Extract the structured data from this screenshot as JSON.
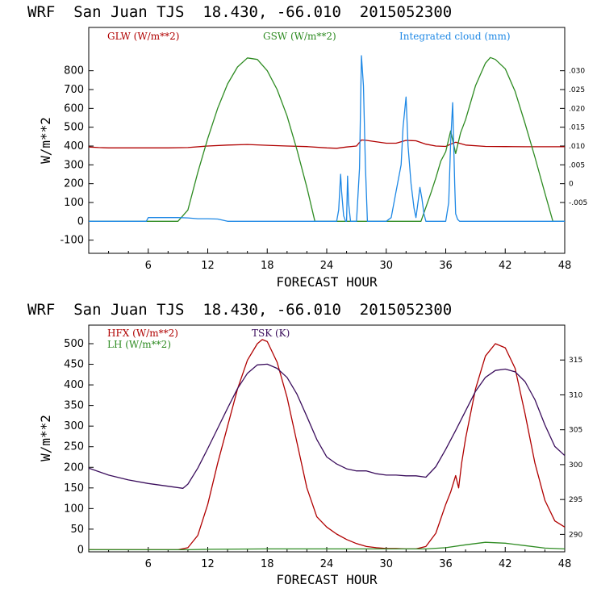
{
  "colors": {
    "glw": "#b00000",
    "gsw": "#2e8b22",
    "cloud": "#1e88e5",
    "hfx": "#b00000",
    "lh": "#2e8b22",
    "tsk": "#3a0d5c"
  },
  "chart_data": [
    {
      "type": "line",
      "title": "WRF  San Juan TJS  18.430, -66.010  2015052300",
      "xlabel": "FORECAST HOUR",
      "ylabel": "W/m**2",
      "xlim": [
        0,
        48
      ],
      "ylim": [
        -170,
        1030
      ],
      "x_ticks": [
        "6",
        "12",
        "18",
        "24",
        "30",
        "36",
        "42",
        "48"
      ],
      "x_tick_values": [
        6,
        12,
        18,
        24,
        30,
        36,
        42,
        48
      ],
      "y_ticks": [
        "-100",
        "0",
        "100",
        "200",
        "300",
        "400",
        "500",
        "600",
        "700",
        "800"
      ],
      "y_tick_values": [
        -100,
        0,
        100,
        200,
        300,
        400,
        500,
        600,
        700,
        800
      ],
      "y2_ticks": [
        ".030",
        ".025",
        ".020",
        ".015",
        ".010",
        ".005",
        "0",
        "-.005"
      ],
      "y2_tick_values": [
        800,
        700,
        600,
        500,
        400,
        300,
        200,
        100
      ],
      "series": [
        {
          "name": "GLW (W/m**2)",
          "color_key": "glw",
          "x": [
            0,
            1,
            2,
            4,
            6,
            8,
            10,
            12,
            14,
            16,
            18,
            20,
            22,
            24,
            25,
            26,
            27,
            27.5,
            28,
            30,
            31,
            32,
            33,
            34,
            35,
            36,
            36.5,
            37,
            38,
            40,
            42,
            44,
            46,
            48
          ],
          "y": [
            395,
            392,
            390,
            390,
            390,
            390,
            392,
            400,
            405,
            408,
            404,
            400,
            397,
            390,
            388,
            395,
            400,
            432,
            430,
            415,
            415,
            430,
            428,
            410,
            400,
            398,
            410,
            420,
            405,
            398,
            397,
            396,
            396,
            396
          ]
        },
        {
          "name": "GSW (W/m**2)",
          "color_key": "gsw",
          "x": [
            0,
            9,
            10,
            11,
            12,
            13,
            14,
            15,
            16,
            17,
            18,
            19,
            20,
            21,
            22,
            22.8,
            30,
            33.5,
            34.5,
            35,
            35.5,
            36,
            36.5,
            37,
            37.5,
            38,
            39,
            40,
            40.5,
            41,
            42,
            43,
            44,
            45,
            46,
            46.8,
            48
          ],
          "y": [
            0,
            0,
            60,
            260,
            440,
            600,
            730,
            820,
            868,
            860,
            800,
            700,
            560,
            380,
            180,
            0,
            0,
            0,
            150,
            230,
            320,
            370,
            480,
            360,
            470,
            540,
            720,
            840,
            870,
            860,
            810,
            690,
            520,
            340,
            150,
            0,
            0
          ]
        },
        {
          "name": "Integrated cloud (mm)",
          "color_key": "cloud",
          "x": [
            0,
            5.8,
            6,
            9,
            10,
            11,
            12,
            13,
            14,
            25,
            25.2,
            25.4,
            25.5,
            25.7,
            25.9,
            26,
            26.1,
            26.2,
            26.4,
            27,
            27.3,
            27.5,
            27.7,
            27.9,
            28.1,
            28.3,
            28.5,
            29,
            30,
            30.5,
            31,
            31.5,
            31.7,
            32,
            32.2,
            32.5,
            32.8,
            33,
            33.2,
            33.4,
            33.6,
            33.8,
            34,
            35,
            36,
            36.3,
            36.5,
            36.7,
            36.9,
            37,
            37.2,
            37.4,
            38,
            48
          ],
          "y": [
            0,
            0,
            20,
            20,
            18,
            14,
            14,
            12,
            0,
            0,
            60,
            250,
            160,
            30,
            0,
            0,
            240,
            100,
            0,
            0,
            280,
            880,
            720,
            300,
            0,
            0,
            0,
            0,
            0,
            20,
            160,
            300,
            500,
            660,
            400,
            200,
            70,
            20,
            100,
            180,
            120,
            40,
            0,
            0,
            0,
            100,
            420,
            630,
            200,
            40,
            10,
            0,
            0,
            0
          ]
        }
      ]
    },
    {
      "type": "line",
      "title": "WRF  San Juan TJS  18.430, -66.010  2015052300",
      "xlabel": "FORECAST HOUR",
      "ylabel": "W/m**2",
      "xlim": [
        0,
        48
      ],
      "ylim": [
        -5,
        545
      ],
      "x_ticks": [
        "6",
        "12",
        "18",
        "24",
        "30",
        "36",
        "42",
        "48"
      ],
      "x_tick_values": [
        6,
        12,
        18,
        24,
        30,
        36,
        42,
        48
      ],
      "y_ticks": [
        "0",
        "50",
        "100",
        "150",
        "200",
        "250",
        "300",
        "350",
        "400",
        "450",
        "500"
      ],
      "y_tick_values": [
        0,
        50,
        100,
        150,
        200,
        250,
        300,
        350,
        400,
        450,
        500
      ],
      "y2_ticks": [
        "290",
        "295",
        "300",
        "305",
        "310",
        "315"
      ],
      "y2_tick_values": [
        290,
        295,
        300,
        305,
        310,
        315
      ],
      "y2_lim": [
        287.5,
        320
      ],
      "series": [
        {
          "name": "HFX (W/m**2)",
          "color_key": "hfx",
          "x": [
            0,
            9,
            10,
            11,
            12,
            13,
            14,
            15,
            16,
            17,
            17.5,
            18,
            19,
            20,
            21,
            22,
            23,
            24,
            25,
            26,
            27,
            28,
            29,
            30,
            31,
            32,
            33,
            34,
            35,
            36,
            36.5,
            37,
            37.3,
            37.6,
            38,
            39,
            40,
            41,
            42,
            43,
            44,
            45,
            46,
            47,
            48
          ],
          "y": [
            0,
            0,
            5,
            35,
            110,
            210,
            300,
            390,
            460,
            500,
            510,
            505,
            455,
            370,
            260,
            150,
            80,
            55,
            38,
            25,
            15,
            8,
            5,
            3,
            3,
            2,
            2,
            8,
            40,
            110,
            140,
            180,
            150,
            210,
            270,
            390,
            470,
            500,
            490,
            440,
            330,
            210,
            120,
            70,
            55
          ]
        },
        {
          "name": "LH (W/m**2)",
          "color_key": "lh",
          "x": [
            0,
            10,
            12,
            18,
            24,
            30,
            34,
            36,
            38,
            40,
            42,
            44,
            46,
            48
          ],
          "y": [
            0,
            0,
            1,
            2,
            2,
            2,
            2,
            5,
            12,
            18,
            16,
            10,
            4,
            2
          ]
        },
        {
          "name": "TSK (K)",
          "color_key": "tsk",
          "axis": "right",
          "x": [
            0,
            2,
            4,
            6,
            8,
            9.5,
            10,
            11,
            12,
            13,
            14,
            15,
            16,
            17,
            18,
            19,
            20,
            21,
            22,
            23,
            24,
            25,
            26,
            27,
            28,
            29,
            30,
            31,
            32,
            33,
            34,
            35,
            36,
            37,
            38,
            39,
            40,
            41,
            42,
            43,
            44,
            45,
            46,
            47,
            48
          ],
          "y": [
            299.5,
            298.5,
            297.8,
            297.3,
            296.9,
            296.6,
            297.2,
            299.5,
            302.3,
            305.2,
            308.1,
            310.9,
            313.1,
            314.3,
            314.4,
            313.8,
            312.5,
            310.1,
            306.9,
            303.6,
            301.1,
            300.1,
            299.4,
            299.1,
            299.1,
            298.7,
            298.5,
            298.5,
            298.4,
            298.4,
            298.2,
            299.7,
            302.2,
            304.9,
            307.7,
            310.5,
            312.5,
            313.5,
            313.7,
            313.3,
            311.9,
            309.3,
            305.7,
            302.6,
            301.3
          ]
        }
      ]
    }
  ],
  "legend_top": {
    "glw": "GLW (W/m**2)",
    "gsw": "GSW (W/m**2)",
    "cloud": "Integrated cloud (mm)"
  },
  "legend_bottom": {
    "hfx": "HFX (W/m**2)",
    "lh": "LH  (W/m**2)",
    "tsk": "TSK (K)"
  }
}
